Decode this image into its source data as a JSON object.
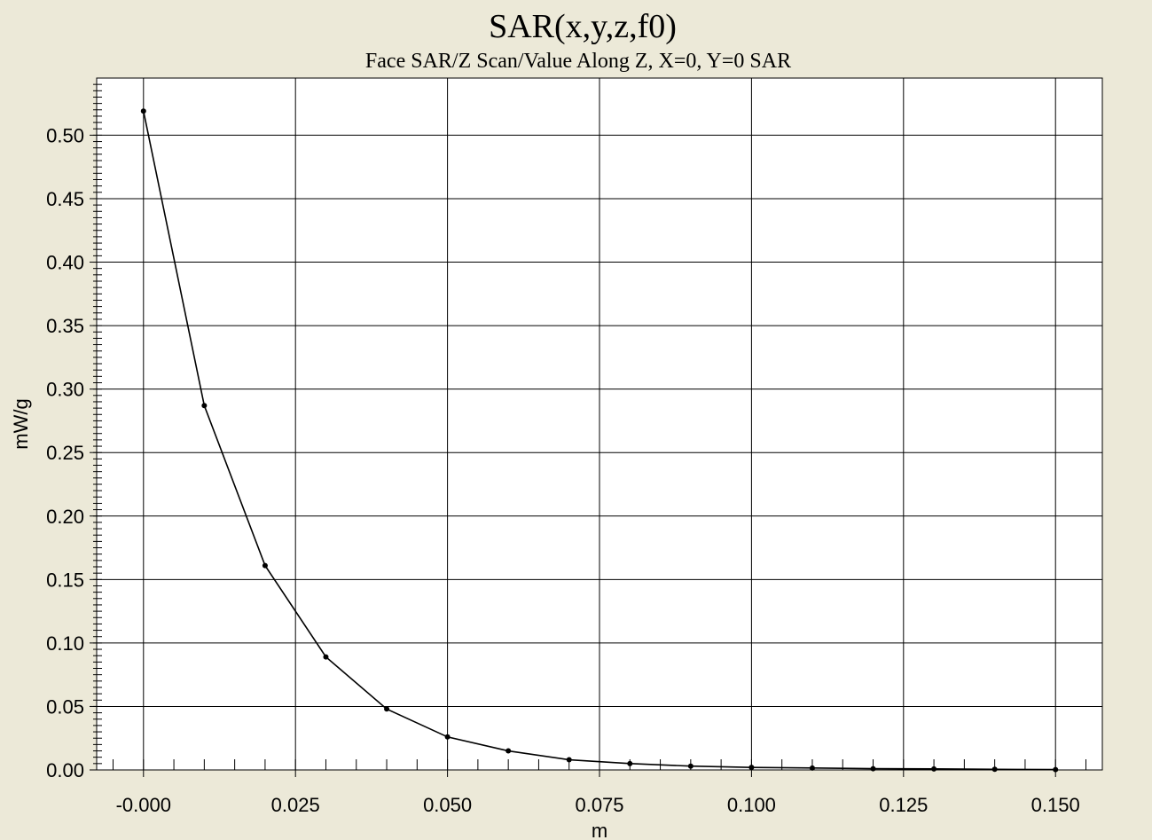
{
  "chart_data": {
    "type": "line",
    "title": "SAR(x,y,z,f0)",
    "subtitle": "Face SAR/Z Scan/Value Along Z, X=0, Y=0 SAR",
    "xlabel": "m",
    "ylabel": "mW/g",
    "xlim": [
      -0.0077,
      0.1577
    ],
    "ylim": [
      0.0,
      0.545
    ],
    "x_ticks": [
      0.0,
      0.025,
      0.05,
      0.075,
      0.1,
      0.125,
      0.15
    ],
    "x_tick_labels": [
      "-0.000",
      "0.025",
      "0.050",
      "0.075",
      "0.100",
      "0.125",
      "0.150"
    ],
    "y_ticks": [
      0.0,
      0.05,
      0.1,
      0.15,
      0.2,
      0.25,
      0.3,
      0.35,
      0.4,
      0.45,
      0.5
    ],
    "y_tick_labels": [
      "0.00",
      "0.05",
      "0.10",
      "0.15",
      "0.20",
      "0.25",
      "0.30",
      "0.35",
      "0.40",
      "0.45",
      "0.50"
    ],
    "grid": true,
    "series": [
      {
        "x": [
          0.0,
          0.01,
          0.02,
          0.03,
          0.04,
          0.05,
          0.06,
          0.07,
          0.08,
          0.09,
          0.1,
          0.11,
          0.12,
          0.13,
          0.14,
          0.15
        ],
        "y": [
          0.519,
          0.287,
          0.161,
          0.089,
          0.048,
          0.026,
          0.015,
          0.008,
          0.005,
          0.003,
          0.002,
          0.0015,
          0.001,
          0.0008,
          0.0005,
          0.0003
        ]
      }
    ]
  },
  "colors": {
    "frame_background": "#ece9d8",
    "plot_background": "#ffffff",
    "grid": "#000000",
    "line": "#000000",
    "marker": "#000000"
  }
}
